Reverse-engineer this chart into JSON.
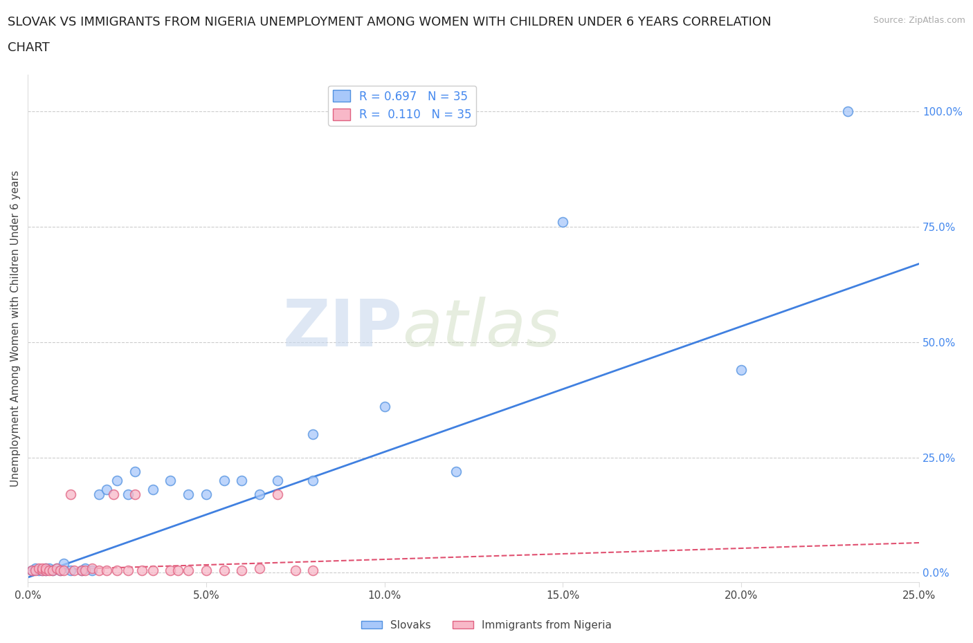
{
  "title_line1": "SLOVAK VS IMMIGRANTS FROM NIGERIA UNEMPLOYMENT AMONG WOMEN WITH CHILDREN UNDER 6 YEARS CORRELATION",
  "title_line2": "CHART",
  "source": "Source: ZipAtlas.com",
  "ylabel": "Unemployment Among Women with Children Under 6 years",
  "xlabel_ticks": [
    "0.0%",
    "5.0%",
    "10.0%",
    "15.0%",
    "20.0%",
    "25.0%"
  ],
  "ytick_labels_right": [
    "0.0%",
    "25.0%",
    "50.0%",
    "75.0%",
    "100.0%"
  ],
  "ytick_values": [
    0,
    0.25,
    0.5,
    0.75,
    1.0
  ],
  "xtick_values": [
    0,
    0.05,
    0.1,
    0.15,
    0.2,
    0.25
  ],
  "xmin": 0.0,
  "xmax": 0.25,
  "ymin": -0.02,
  "ymax": 1.08,
  "legend_slovak": "R = 0.697   N = 35",
  "legend_nigeria": "R =  0.110   N = 35",
  "watermark_zip": "ZIP",
  "watermark_atlas": "atlas",
  "scatter_slovak": [
    [
      0.001,
      0.005
    ],
    [
      0.002,
      0.01
    ],
    [
      0.003,
      0.005
    ],
    [
      0.004,
      0.005
    ],
    [
      0.005,
      0.01
    ],
    [
      0.005,
      0.005
    ],
    [
      0.006,
      0.01
    ],
    [
      0.007,
      0.005
    ],
    [
      0.008,
      0.01
    ],
    [
      0.009,
      0.005
    ],
    [
      0.01,
      0.02
    ],
    [
      0.012,
      0.005
    ],
    [
      0.015,
      0.005
    ],
    [
      0.016,
      0.01
    ],
    [
      0.018,
      0.005
    ],
    [
      0.02,
      0.17
    ],
    [
      0.022,
      0.18
    ],
    [
      0.025,
      0.2
    ],
    [
      0.028,
      0.17
    ],
    [
      0.03,
      0.22
    ],
    [
      0.035,
      0.18
    ],
    [
      0.04,
      0.2
    ],
    [
      0.045,
      0.17
    ],
    [
      0.05,
      0.17
    ],
    [
      0.055,
      0.2
    ],
    [
      0.06,
      0.2
    ],
    [
      0.065,
      0.17
    ],
    [
      0.07,
      0.2
    ],
    [
      0.08,
      0.2
    ],
    [
      0.08,
      0.3
    ],
    [
      0.1,
      0.36
    ],
    [
      0.12,
      0.22
    ],
    [
      0.15,
      0.76
    ],
    [
      0.2,
      0.44
    ],
    [
      0.23,
      1.0
    ]
  ],
  "scatter_nigeria": [
    [
      0.001,
      0.005
    ],
    [
      0.002,
      0.005
    ],
    [
      0.003,
      0.01
    ],
    [
      0.004,
      0.005
    ],
    [
      0.004,
      0.01
    ],
    [
      0.005,
      0.005
    ],
    [
      0.005,
      0.01
    ],
    [
      0.006,
      0.005
    ],
    [
      0.007,
      0.005
    ],
    [
      0.008,
      0.01
    ],
    [
      0.009,
      0.005
    ],
    [
      0.01,
      0.005
    ],
    [
      0.012,
      0.17
    ],
    [
      0.013,
      0.005
    ],
    [
      0.015,
      0.005
    ],
    [
      0.016,
      0.005
    ],
    [
      0.018,
      0.01
    ],
    [
      0.02,
      0.005
    ],
    [
      0.022,
      0.005
    ],
    [
      0.024,
      0.17
    ],
    [
      0.025,
      0.005
    ],
    [
      0.028,
      0.005
    ],
    [
      0.03,
      0.17
    ],
    [
      0.032,
      0.005
    ],
    [
      0.035,
      0.005
    ],
    [
      0.04,
      0.005
    ],
    [
      0.042,
      0.005
    ],
    [
      0.045,
      0.005
    ],
    [
      0.05,
      0.005
    ],
    [
      0.055,
      0.005
    ],
    [
      0.06,
      0.005
    ],
    [
      0.065,
      0.01
    ],
    [
      0.07,
      0.17
    ],
    [
      0.075,
      0.005
    ],
    [
      0.08,
      0.005
    ]
  ],
  "color_slovak": "#a8c8fa",
  "color_nigeria": "#f8b8c8",
  "edge_slovak": "#5090e0",
  "edge_nigeria": "#e06080",
  "line_slovak": "#4080e0",
  "line_nigeria": "#e05070",
  "right_tick_color": "#4488ee",
  "background_color": "#ffffff",
  "grid_color": "#cccccc",
  "title_fontsize": 13,
  "axis_label_fontsize": 11,
  "tick_fontsize": 11,
  "source_color": "#aaaaaa"
}
